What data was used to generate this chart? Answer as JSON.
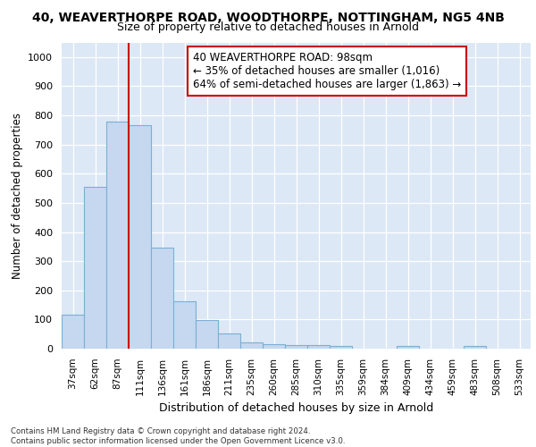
{
  "title": "40, WEAVERTHORPE ROAD, WOODTHORPE, NOTTINGHAM, NG5 4NB",
  "subtitle": "Size of property relative to detached houses in Arnold",
  "xlabel": "Distribution of detached houses by size in Arnold",
  "ylabel": "Number of detached properties",
  "categories": [
    "37sqm",
    "62sqm",
    "87sqm",
    "111sqm",
    "136sqm",
    "161sqm",
    "186sqm",
    "211sqm",
    "235sqm",
    "260sqm",
    "285sqm",
    "310sqm",
    "335sqm",
    "359sqm",
    "384sqm",
    "409sqm",
    "434sqm",
    "459sqm",
    "483sqm",
    "508sqm",
    "533sqm"
  ],
  "values": [
    115,
    555,
    780,
    765,
    345,
    163,
    98,
    53,
    20,
    14,
    12,
    12,
    8,
    0,
    0,
    10,
    0,
    0,
    10,
    0,
    0
  ],
  "bar_color": "#c5d8f0",
  "bar_edge_color": "#7bafd4",
  "vline_x": 2.5,
  "vline_color": "#cc0000",
  "annotation_text": "40 WEAVERTHORPE ROAD: 98sqm\n← 35% of detached houses are smaller (1,016)\n64% of semi-detached houses are larger (1,863) →",
  "annotation_box_color": "#ffffff",
  "annotation_box_edge": "#cc0000",
  "ylim": [
    0,
    1050
  ],
  "yticks": [
    0,
    100,
    200,
    300,
    400,
    500,
    600,
    700,
    800,
    900,
    1000
  ],
  "bg_color": "#dce8f5",
  "footer_line1": "Contains HM Land Registry data © Crown copyright and database right 2024.",
  "footer_line2": "Contains public sector information licensed under the Open Government Licence v3.0.",
  "title_fontsize": 10,
  "subtitle_fontsize": 9
}
